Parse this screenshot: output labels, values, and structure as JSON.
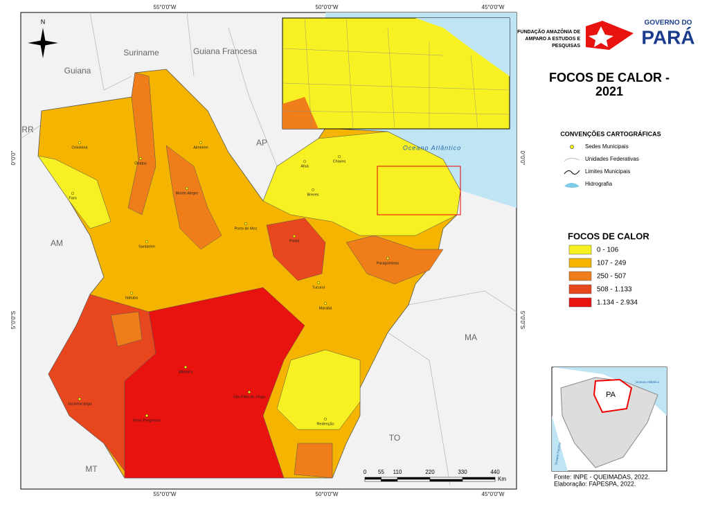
{
  "header": {
    "org_line1": "FUNDAÇÃO AMAZÔNIA DE",
    "org_line2": "AMPARO A ESTUDOS E",
    "org_line3": "PESQUISAS",
    "gov_line1": "GOVERNO DO",
    "gov_line2": "PARÁ"
  },
  "title": [
    "FOCOS DE CALOR -",
    "2021"
  ],
  "conventions": {
    "title": "CONVENÇÕES CARTOGRÁFICAS",
    "items": [
      "Sedes Municipais",
      "Unidades Federativas",
      "Limites Municipais",
      "Hidrografia"
    ]
  },
  "legend": {
    "title": "FOCOS DE CALOR",
    "classes": [
      {
        "label": "0 - 106",
        "color": "#f7f023"
      },
      {
        "label": "107 - 249",
        "color": "#f5b400"
      },
      {
        "label": "250 - 507",
        "color": "#ef7d1a"
      },
      {
        "label": "508 - 1.133",
        "color": "#e8461c"
      },
      {
        "label": "1.134 - 2.934",
        "color": "#e8120e"
      }
    ]
  },
  "coordinates": {
    "top": [
      "55°0'0\"W",
      "50°0'0\"W",
      "45°0'0\"W"
    ],
    "bottom": [
      "55°0'0\"W",
      "50°0'0\"W",
      "45°0'0\"W"
    ],
    "left": [
      "0°0'0\"",
      "5°0'0\"S"
    ],
    "right": [
      "0°0'0\"",
      "5°0'0\"S"
    ]
  },
  "neighbors": [
    "Suriname",
    "Guiana Francesa",
    "Guiana",
    "RR",
    "AP",
    "AM",
    "MA",
    "TO",
    "MT",
    "Oceano Atlântico"
  ],
  "north": "N",
  "municipalities": [
    "Oriximiná",
    "Óbidos",
    "Almeirim",
    "Santarém",
    "Altamira",
    "São Félix do Xingu",
    "Novo Progresso",
    "Jacareacanga",
    "Itaituba",
    "Portel",
    "Breves",
    "Chaves",
    "Afuá",
    "Marabá",
    "Paragominas",
    "Faro",
    "Monte Alegre",
    "Porto de Moz",
    "Tucuruí",
    "Redenção"
  ],
  "locator": {
    "label": "PA",
    "ocean": "Oceano Atlântico",
    "pacific": "Oceano Pacífico"
  },
  "scale": {
    "ticks": [
      "0",
      "55",
      "110",
      "220",
      "330",
      "440"
    ],
    "unit": "Km"
  },
  "source": [
    "Fonte: INPE - QUEIMADAS, 2022.",
    "Elaboração: FAPESPA, 2022."
  ]
}
